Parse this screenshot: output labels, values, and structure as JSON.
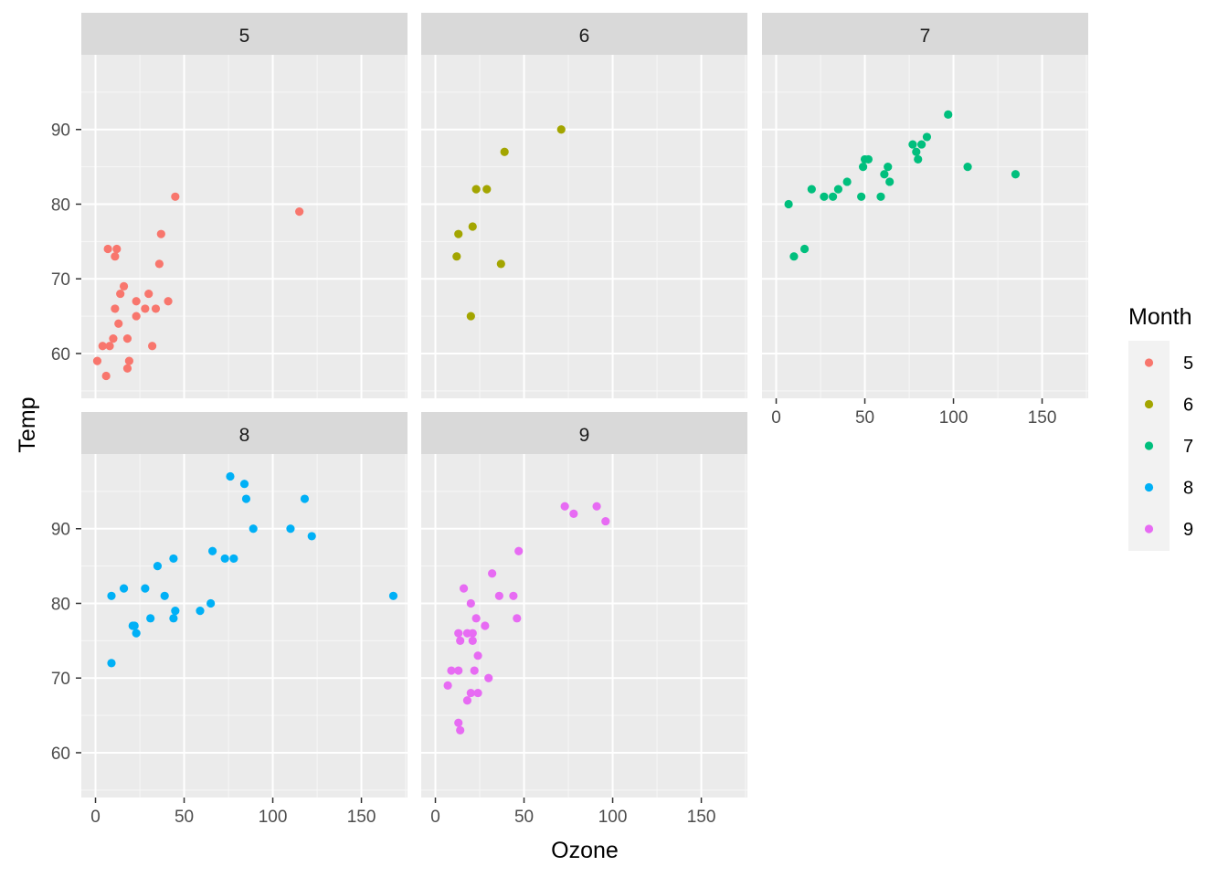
{
  "chart_data": {
    "type": "scatter",
    "facet_by": "Month",
    "xlabel": "Ozone",
    "ylabel": "Temp",
    "xlim": [
      -8,
      176
    ],
    "ylim": [
      54,
      100
    ],
    "x_ticks": [
      0,
      50,
      100,
      150
    ],
    "y_ticks": [
      60,
      70,
      80,
      90
    ],
    "grid": true,
    "legend": {
      "title": "Month",
      "position": "right"
    },
    "panels": [
      {
        "label": "5",
        "color": "#F8766D",
        "points": [
          [
            1,
            59
          ],
          [
            4,
            61
          ],
          [
            6,
            57
          ],
          [
            7,
            74
          ],
          [
            8,
            61
          ],
          [
            10,
            62
          ],
          [
            11,
            73
          ],
          [
            11,
            66
          ],
          [
            12,
            74
          ],
          [
            13,
            64
          ],
          [
            14,
            68
          ],
          [
            16,
            69
          ],
          [
            18,
            62
          ],
          [
            18,
            58
          ],
          [
            19,
            59
          ],
          [
            23,
            67
          ],
          [
            23,
            65
          ],
          [
            28,
            66
          ],
          [
            30,
            68
          ],
          [
            32,
            61
          ],
          [
            34,
            66
          ],
          [
            36,
            72
          ],
          [
            37,
            76
          ],
          [
            41,
            67
          ],
          [
            45,
            81
          ],
          [
            115,
            79
          ]
        ]
      },
      {
        "label": "6",
        "color": "#A3A500",
        "points": [
          [
            12,
            73
          ],
          [
            13,
            76
          ],
          [
            20,
            65
          ],
          [
            21,
            77
          ],
          [
            23,
            82
          ],
          [
            29,
            82
          ],
          [
            37,
            72
          ],
          [
            39,
            87
          ],
          [
            71,
            90
          ]
        ]
      },
      {
        "label": "7",
        "color": "#00BF7D",
        "points": [
          [
            7,
            80
          ],
          [
            10,
            73
          ],
          [
            16,
            74
          ],
          [
            20,
            82
          ],
          [
            27,
            81
          ],
          [
            32,
            81
          ],
          [
            35,
            82
          ],
          [
            40,
            83
          ],
          [
            48,
            81
          ],
          [
            49,
            85
          ],
          [
            50,
            86
          ],
          [
            52,
            86
          ],
          [
            59,
            81
          ],
          [
            61,
            84
          ],
          [
            63,
            85
          ],
          [
            64,
            83
          ],
          [
            77,
            88
          ],
          [
            79,
            87
          ],
          [
            80,
            86
          ],
          [
            82,
            88
          ],
          [
            85,
            89
          ],
          [
            97,
            92
          ],
          [
            108,
            85
          ],
          [
            135,
            84
          ]
        ]
      },
      {
        "label": "8",
        "color": "#00B0F6",
        "points": [
          [
            9,
            81
          ],
          [
            9,
            72
          ],
          [
            16,
            82
          ],
          [
            21,
            77
          ],
          [
            22,
            77
          ],
          [
            23,
            76
          ],
          [
            28,
            82
          ],
          [
            31,
            78
          ],
          [
            35,
            85
          ],
          [
            39,
            81
          ],
          [
            44,
            86
          ],
          [
            44,
            78
          ],
          [
            45,
            79
          ],
          [
            59,
            79
          ],
          [
            65,
            80
          ],
          [
            66,
            87
          ],
          [
            73,
            86
          ],
          [
            76,
            97
          ],
          [
            78,
            86
          ],
          [
            84,
            96
          ],
          [
            85,
            94
          ],
          [
            89,
            90
          ],
          [
            110,
            90
          ],
          [
            118,
            94
          ],
          [
            122,
            89
          ],
          [
            168,
            81
          ]
        ]
      },
      {
        "label": "9",
        "color": "#E76BF3",
        "points": [
          [
            7,
            69
          ],
          [
            9,
            71
          ],
          [
            13,
            64
          ],
          [
            13,
            71
          ],
          [
            13,
            76
          ],
          [
            14,
            63
          ],
          [
            14,
            75
          ],
          [
            16,
            82
          ],
          [
            18,
            67
          ],
          [
            18,
            76
          ],
          [
            20,
            80
          ],
          [
            20,
            68
          ],
          [
            21,
            76
          ],
          [
            21,
            75
          ],
          [
            22,
            71
          ],
          [
            23,
            78
          ],
          [
            24,
            73
          ],
          [
            24,
            68
          ],
          [
            28,
            77
          ],
          [
            30,
            70
          ],
          [
            32,
            84
          ],
          [
            36,
            81
          ],
          [
            44,
            81
          ],
          [
            46,
            78
          ],
          [
            47,
            87
          ],
          [
            73,
            93
          ],
          [
            78,
            92
          ],
          [
            91,
            93
          ],
          [
            96,
            91
          ]
        ]
      }
    ]
  }
}
